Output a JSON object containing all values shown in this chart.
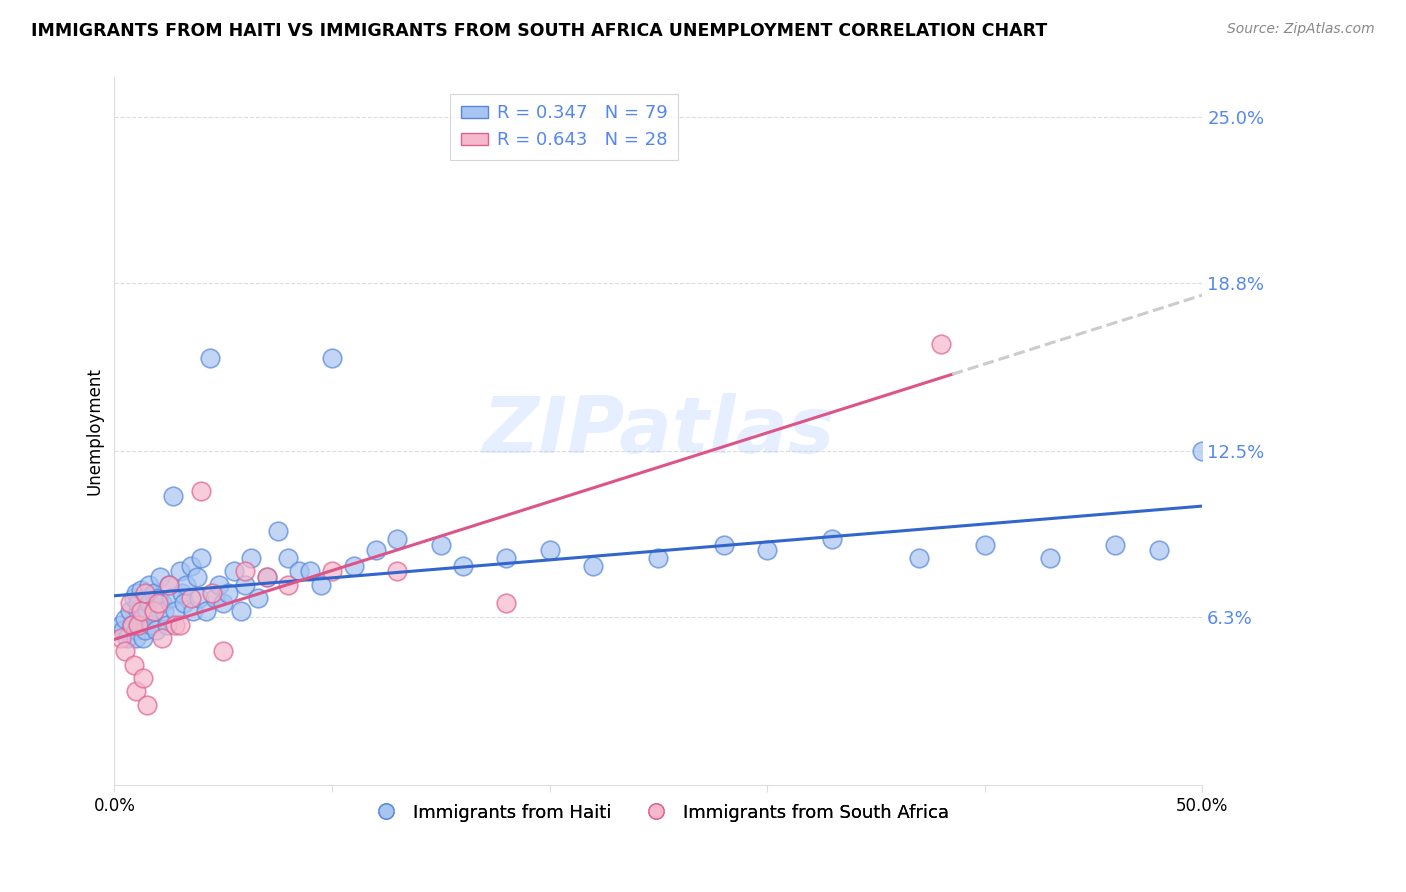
{
  "title": "IMMIGRANTS FROM HAITI VS IMMIGRANTS FROM SOUTH AFRICA UNEMPLOYMENT CORRELATION CHART",
  "source": "Source: ZipAtlas.com",
  "ylabel": "Unemployment",
  "xlim": [
    0.0,
    0.5
  ],
  "ylim": [
    0.0,
    0.265
  ],
  "yticks": [
    0.063,
    0.125,
    0.188,
    0.25
  ],
  "ytick_labels": [
    "6.3%",
    "12.5%",
    "18.8%",
    "25.0%"
  ],
  "xticks": [
    0.0,
    0.1,
    0.2,
    0.3,
    0.4,
    0.5
  ],
  "xtick_labels": [
    "0.0%",
    "",
    "",
    "",
    "",
    "50.0%"
  ],
  "haiti_color": "#a8c4f0",
  "haiti_edge_color": "#5588dd",
  "sa_color": "#f5b8cc",
  "sa_edge_color": "#e06090",
  "haiti_line_color": "#3366cc",
  "sa_line_color": "#dd5588",
  "sa_dash_color": "#cccccc",
  "legend_label_haiti": "R = 0.347   N = 79",
  "legend_label_sa": "R = 0.643   N = 28",
  "legend_label_haiti_short": "Immigrants from Haiti",
  "legend_label_sa_short": "Immigrants from South Africa",
  "watermark": "ZIPatlas",
  "haiti_x": [
    0.003,
    0.004,
    0.005,
    0.006,
    0.007,
    0.008,
    0.009,
    0.01,
    0.01,
    0.01,
    0.011,
    0.011,
    0.012,
    0.012,
    0.013,
    0.013,
    0.014,
    0.015,
    0.015,
    0.016,
    0.016,
    0.017,
    0.018,
    0.018,
    0.019,
    0.02,
    0.021,
    0.022,
    0.023,
    0.024,
    0.025,
    0.026,
    0.027,
    0.028,
    0.03,
    0.031,
    0.032,
    0.033,
    0.035,
    0.036,
    0.038,
    0.039,
    0.04,
    0.042,
    0.044,
    0.046,
    0.048,
    0.05,
    0.052,
    0.055,
    0.058,
    0.06,
    0.063,
    0.066,
    0.07,
    0.075,
    0.08,
    0.085,
    0.09,
    0.095,
    0.1,
    0.11,
    0.12,
    0.13,
    0.15,
    0.16,
    0.18,
    0.2,
    0.22,
    0.25,
    0.28,
    0.3,
    0.33,
    0.37,
    0.4,
    0.43,
    0.46,
    0.48,
    0.5
  ],
  "haiti_y": [
    0.06,
    0.058,
    0.062,
    0.055,
    0.065,
    0.06,
    0.07,
    0.058,
    0.072,
    0.055,
    0.065,
    0.068,
    0.06,
    0.073,
    0.055,
    0.063,
    0.058,
    0.07,
    0.065,
    0.068,
    0.075,
    0.06,
    0.065,
    0.072,
    0.058,
    0.07,
    0.078,
    0.068,
    0.065,
    0.06,
    0.075,
    0.07,
    0.108,
    0.065,
    0.08,
    0.072,
    0.068,
    0.075,
    0.082,
    0.065,
    0.078,
    0.07,
    0.085,
    0.065,
    0.16,
    0.07,
    0.075,
    0.068,
    0.072,
    0.08,
    0.065,
    0.075,
    0.085,
    0.07,
    0.078,
    0.095,
    0.085,
    0.08,
    0.08,
    0.075,
    0.16,
    0.082,
    0.088,
    0.092,
    0.09,
    0.082,
    0.085,
    0.088,
    0.082,
    0.085,
    0.09,
    0.088,
    0.092,
    0.085,
    0.09,
    0.085,
    0.09,
    0.088,
    0.125
  ],
  "sa_x": [
    0.003,
    0.005,
    0.007,
    0.008,
    0.009,
    0.01,
    0.011,
    0.012,
    0.013,
    0.014,
    0.015,
    0.018,
    0.02,
    0.022,
    0.025,
    0.028,
    0.03,
    0.035,
    0.04,
    0.045,
    0.05,
    0.06,
    0.07,
    0.08,
    0.1,
    0.13,
    0.18,
    0.38
  ],
  "sa_y": [
    0.055,
    0.05,
    0.068,
    0.06,
    0.045,
    0.035,
    0.06,
    0.065,
    0.04,
    0.072,
    0.03,
    0.065,
    0.068,
    0.055,
    0.075,
    0.06,
    0.06,
    0.07,
    0.11,
    0.072,
    0.05,
    0.08,
    0.078,
    0.075,
    0.08,
    0.08,
    0.068,
    0.165
  ]
}
